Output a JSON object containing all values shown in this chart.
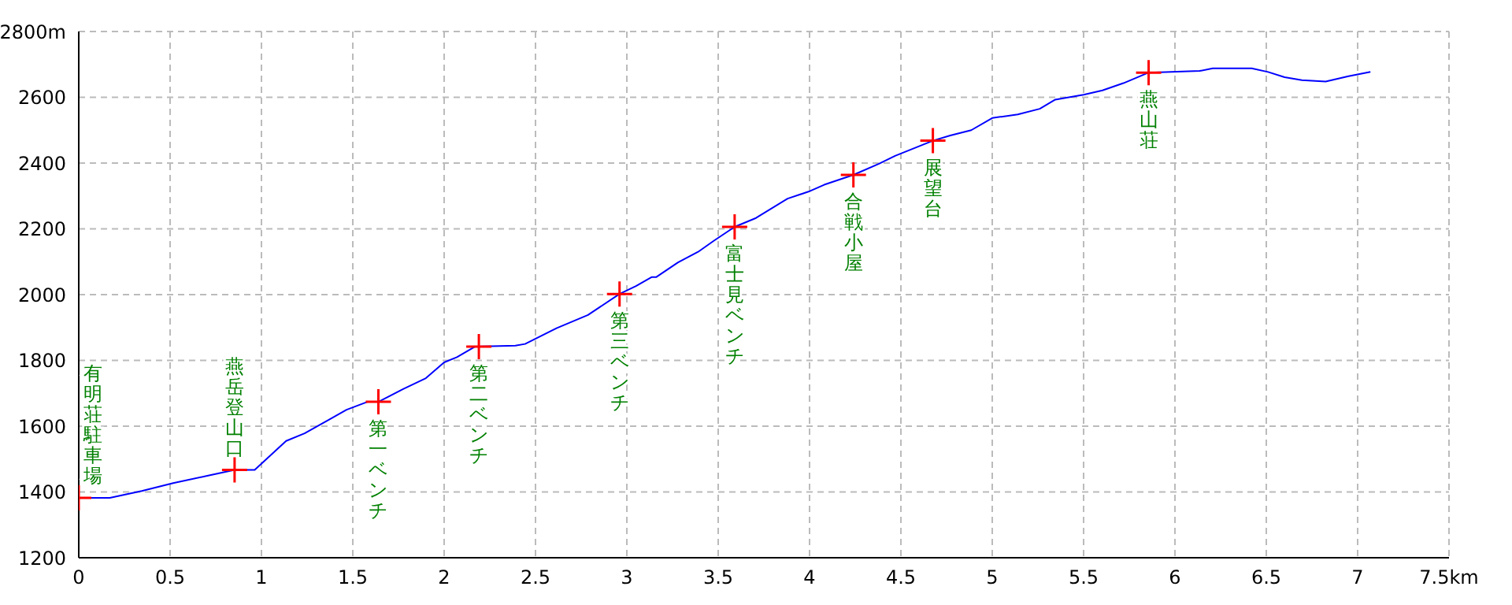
{
  "chart_data": {
    "type": "line",
    "xlim": [
      0,
      7.5
    ],
    "xticks": [
      0,
      0.5,
      1,
      1.5,
      2,
      2.5,
      3,
      3.5,
      4,
      4.5,
      5,
      5.5,
      6,
      6.5,
      7,
      {
        "value": 7.5,
        "label": "7.5km"
      }
    ],
    "ylim": [
      1200,
      2800
    ],
    "yticks": [
      1200,
      1400,
      1600,
      1800,
      2000,
      2200,
      2400,
      2600,
      {
        "value": 2800,
        "label": "2800m"
      }
    ],
    "grid": true,
    "series": [
      {
        "color": "#0000ff",
        "marker": "none",
        "line_style": "solid",
        "x": [
          0,
          0.17,
          0.345,
          0.517,
          0.718,
          0.853,
          0.963,
          1.135,
          1.236,
          1.365,
          1.466,
          1.58,
          1.64,
          1.78,
          1.9,
          2.0,
          2.07,
          2.17,
          2.39,
          2.443,
          2.615,
          2.787,
          2.96,
          3.05,
          3.135,
          3.16,
          3.28,
          3.39,
          3.477,
          3.59,
          3.707,
          3.88,
          3.994,
          4.08,
          4.24,
          4.38,
          4.468,
          4.675,
          4.77,
          4.885,
          5.0,
          5.14,
          5.26,
          5.345,
          5.5,
          5.603,
          5.718,
          5.856,
          6.135,
          6.207,
          6.42,
          6.51,
          6.6,
          6.695,
          6.825,
          6.95,
          7.07
        ],
        "values": [
          1382,
          1382,
          1403,
          1427,
          1451,
          1467,
          1467,
          1555,
          1578,
          1618,
          1650,
          1674,
          1674,
          1714,
          1746,
          1794,
          1810,
          1842,
          1845,
          1850,
          1898,
          1938,
          2002,
          2026,
          2053,
          2053,
          2098,
          2130,
          2164,
          2206,
          2233,
          2292,
          2313,
          2334,
          2364,
          2398,
          2422,
          2468,
          2484,
          2500,
          2537,
          2548,
          2565,
          2593,
          2608,
          2621,
          2643,
          2675,
          2680,
          2688,
          2688,
          2677,
          2661,
          2652,
          2648,
          2664,
          2677
        ]
      },
      {
        "type": "scatter",
        "color": "#ff0000",
        "marker": "cross",
        "x": [
          0,
          0.853,
          1.64,
          2.19,
          2.96,
          3.59,
          4.24,
          4.675,
          5.856
        ],
        "values": [
          1382,
          1467,
          1674,
          1842,
          2002,
          2206,
          2364,
          2468,
          2675
        ]
      }
    ],
    "annotations": [
      {
        "text": "有明荘駐車場",
        "x": 0,
        "y": 1382
      },
      {
        "text": "燕岳登山口",
        "x": 0.853,
        "y": 1467
      },
      {
        "text": "第一ベンチ",
        "x": 1.64,
        "y": 1674
      },
      {
        "text": "第二ベンチ",
        "x": 2.19,
        "y": 1842
      },
      {
        "text": "第三ベンチ",
        "x": 2.96,
        "y": 2002
      },
      {
        "text": "富士見ベンチ",
        "x": 3.59,
        "y": 2206
      },
      {
        "text": "合戦小屋",
        "x": 4.24,
        "y": 2364
      },
      {
        "text": "展望台",
        "x": 4.675,
        "y": 2468
      },
      {
        "text": "燕山荘",
        "x": 5.856,
        "y": 2675
      }
    ]
  }
}
